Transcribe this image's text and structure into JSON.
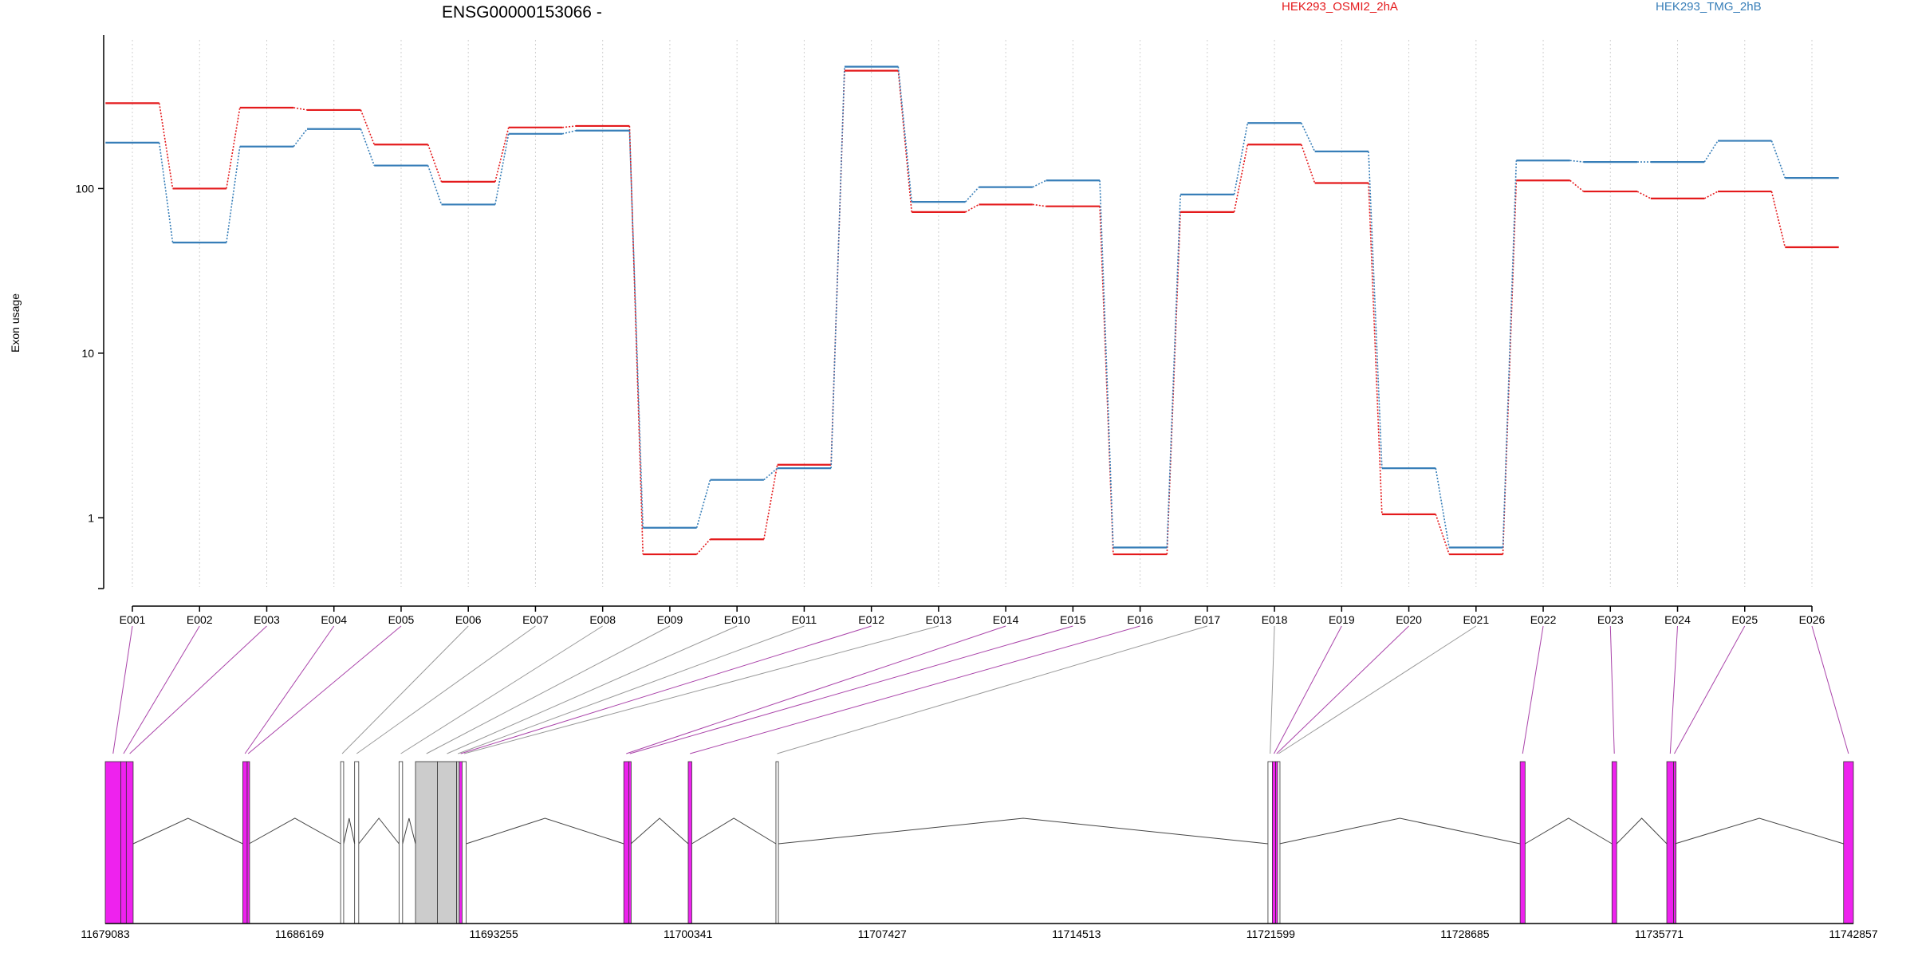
{
  "chart_data": {
    "type": "line",
    "title": "ENSG00000153066 -",
    "ylabel": "Exon usage",
    "xlabel": "",
    "yscale": "log",
    "ylim": [
      0.38,
      800
    ],
    "yticks": [
      1,
      10,
      100
    ],
    "ytick_labels": [
      "1",
      "10",
      "100"
    ],
    "grid": "vertical dotted lines at exon positions",
    "legend_position": "top, above plot",
    "categories": [
      "E001",
      "E002",
      "E003",
      "E004",
      "E005",
      "E006",
      "E007",
      "E008",
      "E009",
      "E010",
      "E011",
      "E012",
      "E013",
      "E014",
      "E015",
      "E016",
      "E017",
      "E018",
      "E019",
      "E020",
      "E021",
      "E022",
      "E023",
      "E024",
      "E025",
      "E026"
    ],
    "series": [
      {
        "name": "HEK293_OSMI2_2hA",
        "color": "#e41a1c",
        "values": [
          330,
          100,
          310,
          300,
          185,
          110,
          235,
          240,
          0.6,
          0.74,
          2.1,
          520,
          72,
          80,
          78,
          0.6,
          72,
          185,
          108,
          1.05,
          0.6,
          112,
          96,
          87,
          96,
          44
        ]
      },
      {
        "name": "HEK293_TMG_2hB",
        "color": "#377eb8",
        "values": [
          190,
          47,
          180,
          230,
          138,
          80,
          215,
          225,
          0.87,
          1.7,
          2.0,
          550,
          83,
          102,
          112,
          0.66,
          92,
          250,
          168,
          2.0,
          0.66,
          148,
          145,
          145,
          195,
          116
        ]
      }
    ],
    "genomic_axis": {
      "ticks": [
        "11679083",
        "11686169",
        "11693255",
        "11700341",
        "11707427",
        "11714513",
        "11721599",
        "11728685",
        "11735771",
        "11742857"
      ],
      "start": 11679083,
      "end": 11742857
    },
    "exons": [
      {
        "id": "E001",
        "start": 11679083,
        "end": 11679650,
        "fill": "#ee22ee",
        "line": "#aa44aa"
      },
      {
        "id": "E002",
        "start": 11679650,
        "end": 11679850,
        "fill": "#ee22ee",
        "line": "#aa44aa"
      },
      {
        "id": "E003",
        "start": 11679850,
        "end": 11680100,
        "fill": "#ee22ee",
        "line": "#aa44aa"
      },
      {
        "id": "E004",
        "start": 11684100,
        "end": 11684260,
        "fill": "#ee22ee",
        "line": "#aa44aa"
      },
      {
        "id": "E005",
        "start": 11684260,
        "end": 11684330,
        "fill": "#ee22ee",
        "line": "#aa44aa"
      },
      {
        "id": "E006",
        "start": 11687670,
        "end": 11687780,
        "fill": "#ffffff",
        "line": "#999999"
      },
      {
        "id": "E007",
        "start": 11688180,
        "end": 11688330,
        "fill": "#ffffff",
        "line": "#999999"
      },
      {
        "id": "E008",
        "start": 11689800,
        "end": 11689930,
        "fill": "#ffffff",
        "line": "#999999"
      },
      {
        "id": "E009",
        "start": 11690400,
        "end": 11691200,
        "fill": "#cccccc",
        "line": "#999999"
      },
      {
        "id": "E010",
        "start": 11691200,
        "end": 11691900,
        "fill": "#cccccc",
        "line": "#999999"
      },
      {
        "id": "E011",
        "start": 11691900,
        "end": 11692000,
        "fill": "#cccccc",
        "line": "#999999"
      },
      {
        "id": "E012",
        "start": 11692000,
        "end": 11692100,
        "fill": "#ee22ee",
        "line": "#aa44aa"
      },
      {
        "id": "E013",
        "start": 11692100,
        "end": 11692250,
        "fill": "#ffffff",
        "line": "#999999"
      },
      {
        "id": "E014",
        "start": 11698000,
        "end": 11698180,
        "fill": "#ee22ee",
        "line": "#aa44aa"
      },
      {
        "id": "E015",
        "start": 11698180,
        "end": 11698260,
        "fill": "#ee22ee",
        "line": "#aa44aa"
      },
      {
        "id": "E016",
        "start": 11700350,
        "end": 11700480,
        "fill": "#ee22ee",
        "line": "#aa44aa"
      },
      {
        "id": "E017",
        "start": 11703550,
        "end": 11703640,
        "fill": "#ffffff",
        "line": "#999999"
      },
      {
        "id": "E018",
        "start": 11721500,
        "end": 11721660,
        "fill": "#ffffff",
        "line": "#999999"
      },
      {
        "id": "E019",
        "start": 11721660,
        "end": 11721780,
        "fill": "#ee22ee",
        "line": "#aa44aa"
      },
      {
        "id": "E020",
        "start": 11721780,
        "end": 11721850,
        "fill": "#ee22ee",
        "line": "#aa44aa"
      },
      {
        "id": "E021",
        "start": 11721850,
        "end": 11721920,
        "fill": "#ffffff",
        "line": "#999999"
      },
      {
        "id": "E022",
        "start": 11730700,
        "end": 11730880,
        "fill": "#ee22ee",
        "line": "#aa44aa"
      },
      {
        "id": "E023",
        "start": 11734050,
        "end": 11734220,
        "fill": "#ee22ee",
        "line": "#aa44aa"
      },
      {
        "id": "E024",
        "start": 11736050,
        "end": 11736300,
        "fill": "#ee22ee",
        "line": "#aa44aa"
      },
      {
        "id": "E025",
        "start": 11736300,
        "end": 11736350,
        "fill": "#ee22ee",
        "line": "#aa44aa"
      },
      {
        "id": "E026",
        "start": 11742500,
        "end": 11742857,
        "fill": "#ee22ee",
        "line": "#aa44aa"
      }
    ]
  }
}
